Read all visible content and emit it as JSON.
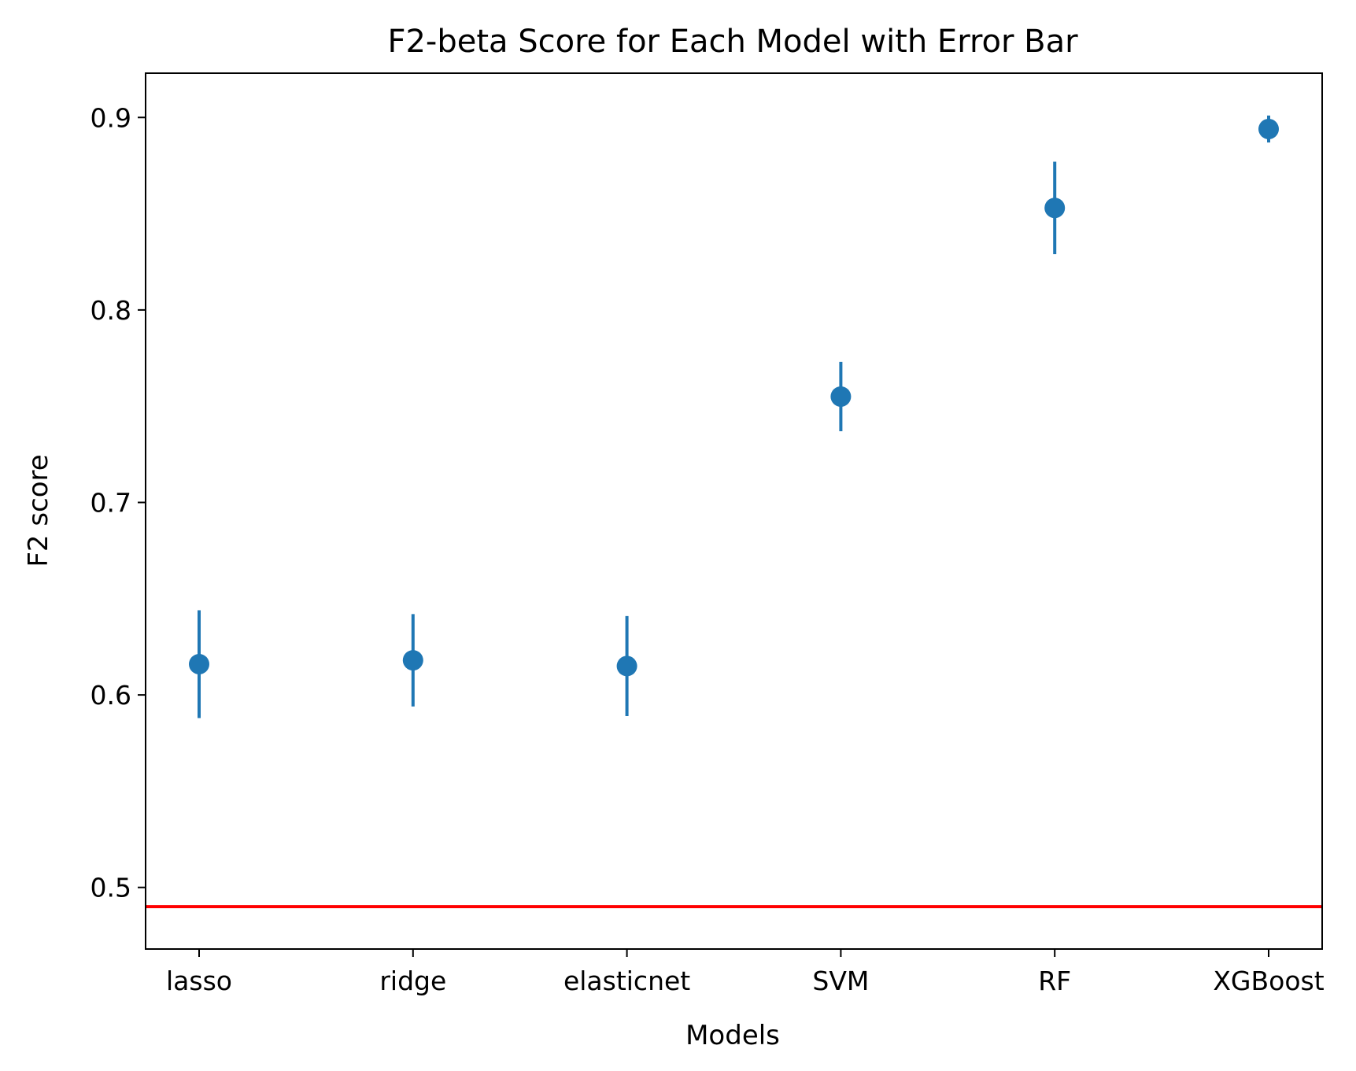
{
  "chart_data": {
    "type": "scatter",
    "title": "F2-beta Score for Each Model with Error Bar",
    "xlabel": "Models",
    "ylabel": "F2 score",
    "categories": [
      "lasso",
      "ridge",
      "elasticnet",
      "SVM",
      "RF",
      "XGBoost"
    ],
    "series": [
      {
        "values": [
          0.616,
          0.618,
          0.615,
          0.755,
          0.853,
          0.894
        ],
        "errors": [
          0.028,
          0.024,
          0.026,
          0.018,
          0.024,
          0.007
        ],
        "color": "#1f77b4"
      }
    ],
    "reference_line": {
      "y": 0.49,
      "color": "#ff0000"
    },
    "ylim": [
      0.468,
      0.923
    ],
    "yticks": [
      "0.5",
      "0.6",
      "0.7",
      "0.8",
      "0.9"
    ],
    "grid": false
  }
}
